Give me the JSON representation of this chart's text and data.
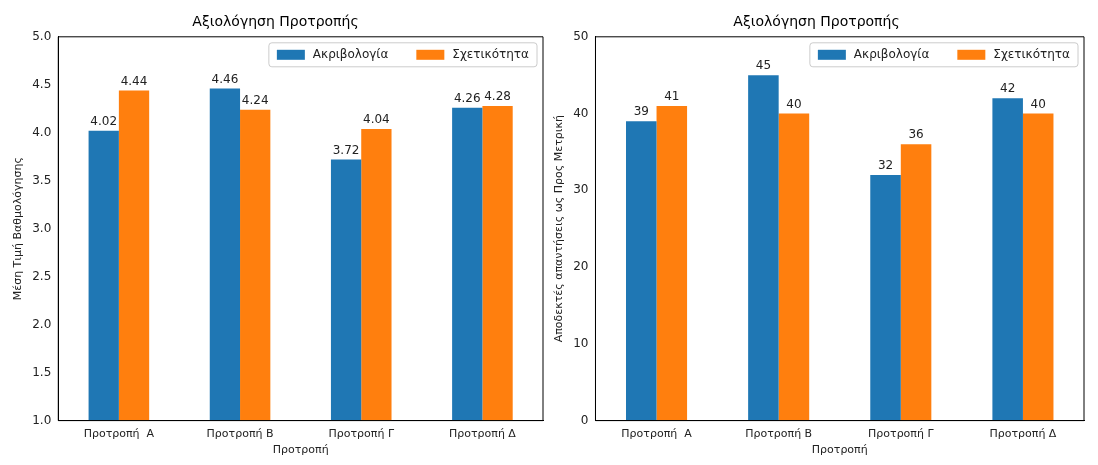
{
  "chart_data": [
    {
      "type": "bar",
      "title": "Αξιολόγηση Προτροπής",
      "xlabel": "Προτροπή",
      "ylabel": "Μέση Τιμή Βαθμολόγησης",
      "categories": [
        "Προτροπή  Α",
        "Προτροπή Β",
        "Προτροπή Γ",
        "Προτροπή Δ"
      ],
      "series": [
        {
          "name": "Ακριβολογία",
          "color": "#1f77b4",
          "values": [
            4.02,
            4.46,
            3.72,
            4.26
          ]
        },
        {
          "name": "Σχετικότητα",
          "color": "#ff7f0e",
          "values": [
            4.44,
            4.24,
            4.04,
            4.28
          ]
        }
      ],
      "ylim": [
        1,
        5
      ],
      "yticks": [
        {
          "value": 1,
          "label": "1.0"
        },
        {
          "value": 1.5,
          "label": "1.5"
        },
        {
          "value": 2,
          "label": "2.0"
        },
        {
          "value": 2.5,
          "label": "2.5"
        },
        {
          "value": 3,
          "label": "3.0"
        },
        {
          "value": 3.5,
          "label": "3.5"
        },
        {
          "value": 4,
          "label": "4.0"
        },
        {
          "value": 4.5,
          "label": "4.5"
        },
        {
          "value": 5,
          "label": "5.0"
        }
      ],
      "data_labels": true,
      "legend": "top right",
      "grid": false
    },
    {
      "type": "bar",
      "title": "Αξιολόγηση Προτροπής",
      "xlabel": "Προτροπή",
      "ylabel": "Αποδεκτές απαντήσεις ως Προς Μετρική",
      "categories": [
        "Προτροπή  Α",
        "Προτροπή Β",
        "Προτροπή Γ",
        "Προτροπή Δ"
      ],
      "series": [
        {
          "name": "Ακριβολογία",
          "color": "#1f77b4",
          "values": [
            39,
            45,
            32,
            42
          ]
        },
        {
          "name": "Σχετικότητα",
          "color": "#ff7f0e",
          "values": [
            41,
            40,
            36,
            40
          ]
        }
      ],
      "ylim": [
        0,
        50
      ],
      "yticks": [
        0,
        10,
        20,
        30,
        40,
        50
      ],
      "data_labels": true,
      "legend": "top right",
      "grid": false
    }
  ]
}
